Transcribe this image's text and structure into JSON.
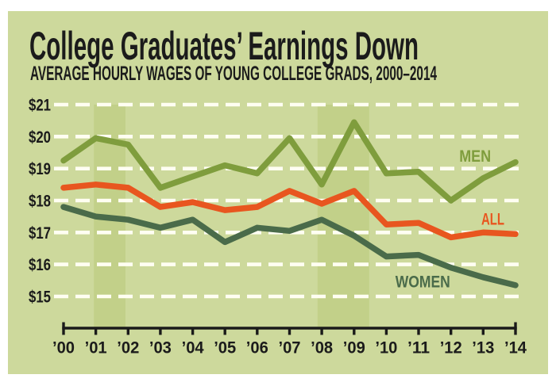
{
  "header": {
    "title": "College Graduates’ Earnings Down",
    "subtitle": "AVERAGE HOURLY WAGES OF YOUNG COLLEGE GRADS, 2000–2014"
  },
  "colors": {
    "page_bg": "#ffffff",
    "panel_bg": "#cdd99c",
    "recession_band": "#c2d089",
    "gridline": "#fffef2",
    "axis": "#1a1a1a",
    "text": "#1b1b1b",
    "men": "#7f9d3d",
    "all": "#e8561f",
    "women": "#4a6b4a"
  },
  "chart_data": {
    "type": "line",
    "title": "College Graduates’ Earnings Down",
    "subtitle": "AVERAGE HOURLY WAGES OF YOUNG COLLEGE GRADS, 2000–2014",
    "xlabel": "",
    "ylabel": "",
    "x": [
      2000,
      2001,
      2002,
      2003,
      2004,
      2005,
      2006,
      2007,
      2008,
      2009,
      2010,
      2011,
      2012,
      2013,
      2014
    ],
    "x_tick_labels": [
      "’00",
      "’01",
      "’02",
      "’03",
      "’04",
      "’05",
      "’06",
      "’07",
      "’08",
      "’09",
      "’10",
      "’11",
      "’12",
      "’13",
      "’14"
    ],
    "y_ticks": [
      21,
      20,
      19,
      18,
      17,
      16,
      15
    ],
    "y_tick_labels": [
      "$21",
      "$20",
      "$19",
      "$18",
      "$17",
      "$16",
      "$15"
    ],
    "ylim": [
      14.4,
      21.6
    ],
    "grid": "horizontal-dashed-white",
    "legend": "inline-labels",
    "series": [
      {
        "name": "MEN",
        "color_key": "men",
        "values": [
          19.25,
          19.95,
          19.75,
          18.4,
          18.75,
          19.1,
          18.85,
          19.95,
          18.5,
          20.45,
          18.85,
          18.9,
          18.0,
          18.7,
          19.2
        ],
        "label_at": {
          "x": 2012.75,
          "y": 19.4
        }
      },
      {
        "name": "ALL",
        "color_key": "all",
        "values": [
          18.4,
          18.5,
          18.4,
          17.8,
          17.95,
          17.7,
          17.8,
          18.3,
          17.9,
          18.3,
          17.25,
          17.3,
          16.85,
          17.0,
          16.95
        ],
        "label_at": {
          "x": 2013.3,
          "y": 17.43
        }
      },
      {
        "name": "WOMEN",
        "color_key": "women",
        "values": [
          17.8,
          17.5,
          17.4,
          17.15,
          17.4,
          16.7,
          17.15,
          17.05,
          17.4,
          16.9,
          16.25,
          16.3,
          15.9,
          15.6,
          15.35
        ],
        "label_at": {
          "x": 2011.13,
          "y": 15.47
        }
      }
    ],
    "recession_bands": [
      {
        "from": 2000.94,
        "to": 2001.92
      },
      {
        "from": 2007.87,
        "to": 2009.47
      }
    ]
  }
}
